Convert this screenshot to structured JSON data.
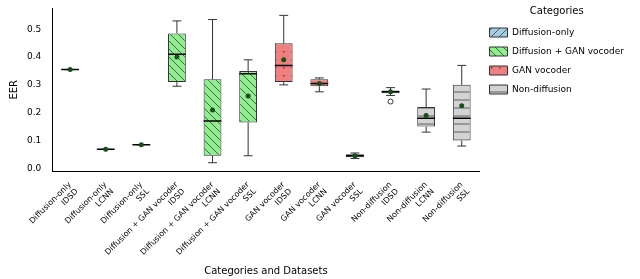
{
  "chart_data": {
    "type": "boxplot",
    "x_label": "Categories and Datasets",
    "y_label": "EER",
    "legend_title": "Categories",
    "legend": "upper right",
    "grid": false,
    "categories": [
      [
        "Diffusion-only",
        "IDSD"
      ],
      [
        "Diffusion-only",
        "LCNN"
      ],
      [
        "Diffusion-only",
        "SSL"
      ],
      [
        "Diffusion + GAN vocoder",
        "IDSD"
      ],
      [
        "Diffusion + GAN vocoder",
        "LCNN"
      ],
      [
        "Diffusion + GAN vocoder",
        "SSL"
      ],
      [
        "GAN vocoder",
        "IDSD"
      ],
      [
        "GAN vocoder",
        "LCNN"
      ],
      [
        "GAN vocoder",
        "SSL"
      ],
      [
        "Non-diffusion",
        "IDSD"
      ],
      [
        "Non-diffusion",
        "LCNN"
      ],
      [
        "Non-diffusion",
        "SSL"
      ]
    ],
    "ylim": [
      -0.01,
      0.575
    ],
    "yticks": [
      {
        "value": 0,
        "label": "0.0"
      },
      {
        "value": 0.1,
        "label": "0.1"
      },
      {
        "value": 0.2,
        "label": "0.2"
      },
      {
        "value": 0.3,
        "label": "0.3"
      },
      {
        "value": 0.4,
        "label": "0.4"
      },
      {
        "value": 0.5,
        "label": "0.5"
      }
    ],
    "series": [
      {
        "name": "Diffusion-only",
        "color": "#a6cee3",
        "values": [
          {
            "min": 0.355,
            "q1": 0.355,
            "median": 0.355,
            "q3": 0.355,
            "max": 0.355,
            "mean": 0.355,
            "outliers": []
          },
          {
            "min": 0.068,
            "q1": 0.068,
            "median": 0.068,
            "q3": 0.068,
            "max": 0.068,
            "mean": 0.068,
            "outliers": []
          },
          {
            "min": 0.085,
            "q1": 0.085,
            "median": 0.085,
            "q3": 0.085,
            "max": 0.085,
            "mean": 0.085,
            "outliers": []
          },
          null,
          null,
          null,
          null,
          null,
          null,
          null,
          null,
          null
        ]
      },
      {
        "name": "Diffusion + GAN vocoder",
        "color": "#90ee90",
        "values": [
          null,
          null,
          null,
          {
            "min": 0.295,
            "q1": 0.31,
            "median": 0.41,
            "q3": 0.485,
            "max": 0.53,
            "mean": 0.4,
            "outliers": []
          },
          {
            "min": 0.02,
            "q1": 0.045,
            "median": 0.17,
            "q3": 0.32,
            "max": 0.535,
            "mean": 0.21,
            "outliers": []
          },
          {
            "min": 0.045,
            "q1": 0.165,
            "median": 0.34,
            "q3": 0.35,
            "max": 0.39,
            "mean": 0.26,
            "outliers": []
          },
          null,
          null,
          null,
          null,
          null,
          null
        ]
      },
      {
        "name": "GAN vocoder",
        "color": "#f08080",
        "values": [
          null,
          null,
          null,
          null,
          null,
          null,
          {
            "min": 0.3,
            "q1": 0.31,
            "median": 0.37,
            "q3": 0.45,
            "max": 0.55,
            "mean": 0.39,
            "outliers": []
          },
          {
            "min": 0.275,
            "q1": 0.295,
            "median": 0.305,
            "q3": 0.32,
            "max": 0.325,
            "mean": 0.305,
            "outliers": []
          },
          {
            "min": 0.035,
            "q1": 0.04,
            "median": 0.045,
            "q3": 0.05,
            "max": 0.055,
            "mean": 0.045,
            "outliers": []
          },
          null,
          null,
          null
        ]
      },
      {
        "name": "Non-diffusion",
        "color": "#d3d3d3",
        "values": [
          null,
          null,
          null,
          null,
          null,
          null,
          null,
          null,
          null,
          {
            "min": 0.262,
            "q1": 0.27,
            "median": 0.275,
            "q3": 0.28,
            "max": 0.29,
            "mean": 0.275,
            "outliers": [
              0.24
            ]
          },
          {
            "min": 0.13,
            "q1": 0.15,
            "median": 0.18,
            "q3": 0.22,
            "max": 0.285,
            "mean": 0.19,
            "outliers": []
          },
          {
            "min": 0.08,
            "q1": 0.1,
            "median": 0.18,
            "q3": 0.3,
            "max": 0.37,
            "mean": 0.225,
            "outliers": []
          }
        ]
      }
    ]
  }
}
